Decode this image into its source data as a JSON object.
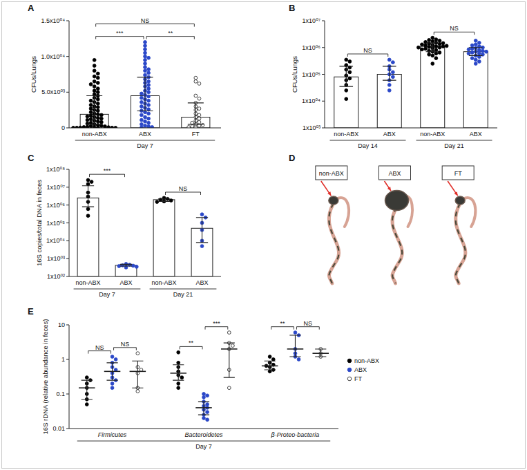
{
  "chart_data": [
    {
      "type": "bar",
      "title": "A",
      "ylabel": "CFUs/Lungs",
      "xlabel": "Day 7",
      "categories": [
        "non-ABX",
        "ABX",
        "FT"
      ],
      "colors": [
        "#000000",
        "#2b48c8",
        "#ffffff"
      ],
      "values": [
        1900,
        4500,
        1500
      ],
      "error_low": [
        500,
        2400,
        500
      ],
      "error_high": [
        4500,
        7100,
        3500
      ],
      "points": [
        [
          9500,
          8700,
          8000,
          7600,
          7200,
          7000,
          6500,
          6300,
          6100,
          5800,
          5500,
          5200,
          5000,
          4700,
          4500,
          4200,
          4000,
          3800,
          3600,
          3400,
          3200,
          3000,
          2900,
          2700,
          2500,
          2400,
          2200,
          2000,
          1900,
          1800,
          1700,
          1600,
          1500,
          1400,
          1300,
          1200,
          1100,
          1000,
          900,
          800,
          700,
          600,
          500,
          400,
          300,
          250,
          200,
          150,
          100,
          80,
          50,
          30,
          20,
          10,
          0,
          0,
          0
        ],
        [
          12000,
          11500,
          11000,
          10500,
          10000,
          9800,
          9500,
          9000,
          8500,
          8200,
          8000,
          7700,
          7400,
          7100,
          6800,
          6500,
          6300,
          6000,
          5800,
          5500,
          5200,
          5000,
          4800,
          4600,
          4400,
          4200,
          4000,
          3800,
          3600,
          3400,
          3200,
          3000,
          2800,
          2600,
          2400,
          2200,
          2000,
          1800,
          1500,
          1300,
          1100,
          900,
          700,
          500,
          300,
          200,
          100,
          50
        ],
        [
          7000,
          6500,
          6200,
          4500,
          4100,
          3500,
          3000,
          2700,
          2500,
          2000,
          1800,
          1500,
          1300,
          1000,
          800,
          700,
          500,
          400,
          300,
          200,
          100,
          50
        ]
      ],
      "ylim": [
        0,
        15000
      ],
      "yticks": [
        0,
        {
          "value": 5000,
          "label": "5.0x10⁰³"
        },
        {
          "value": 10000,
          "label": "1.0x10⁰⁴"
        },
        {
          "value": 15000,
          "label": "1.5x10⁰⁴"
        }
      ],
      "annotations": [
        {
          "text": "NS",
          "from": 0,
          "to": 2
        },
        {
          "text": "***",
          "from": 0,
          "to": 1
        },
        {
          "text": "**",
          "from": 1,
          "to": 2
        }
      ]
    },
    {
      "type": "bar",
      "title": "B",
      "ylabel": "CFUs/Lungs",
      "log": "y",
      "categories": [
        "non-ABX",
        "ABX",
        "non-ABX",
        "ABX"
      ],
      "colors": [
        "#000000",
        "#2b48c8",
        "#000000",
        "#2b48c8"
      ],
      "values": [
        80000,
        100000,
        1100000,
        700000
      ],
      "error_low": [
        35000,
        60000,
        700000,
        500000
      ],
      "error_high": [
        200000,
        200000,
        1500000,
        1000000
      ],
      "points": [
        [
          350000,
          300000,
          220000,
          180000,
          150000,
          120000,
          90000,
          70000,
          60000,
          40000,
          25000,
          12000
        ],
        [
          350000,
          280000,
          200000,
          150000,
          120000,
          100000,
          80000,
          60000,
          40000,
          25000
        ],
        [
          2300000,
          2000000,
          1900000,
          1800000,
          1700000,
          1600000,
          1500000,
          1450000,
          1400000,
          1350000,
          1300000,
          1250000,
          1200000,
          1150000,
          1100000,
          1100000,
          1050000,
          1000000,
          1000000,
          950000,
          900000,
          850000,
          800000,
          750000,
          700000,
          650000,
          600000,
          550000,
          500000,
          400000,
          250000
        ],
        [
          1800000,
          1500000,
          1300000,
          1200000,
          1100000,
          1000000,
          950000,
          900000,
          850000,
          800000,
          750000,
          700000,
          700000,
          650000,
          600000,
          600000,
          550000,
          500000,
          450000,
          400000,
          350000,
          300000,
          250000
        ]
      ],
      "ylim": [
        1000,
        10000000
      ],
      "yticks": [
        {
          "value": 1000,
          "label": "1x10⁰³"
        },
        {
          "value": 10000,
          "label": "1x10⁰⁴"
        },
        {
          "value": 100000,
          "label": "1x10⁰⁵"
        },
        {
          "value": 1000000,
          "label": "1x10⁰⁶"
        },
        {
          "value": 10000000,
          "label": "1x10⁰⁷"
        }
      ],
      "groups": [
        {
          "label": "Day 14",
          "from": 0,
          "to": 1
        },
        {
          "label": "Day 21",
          "from": 2,
          "to": 3
        }
      ],
      "annotations": [
        {
          "text": "NS",
          "from": 0,
          "to": 1
        },
        {
          "text": "NS",
          "from": 2,
          "to": 3
        }
      ]
    },
    {
      "type": "bar",
      "title": "C",
      "ylabel": "16S copies/total DNA in feces",
      "log": "y",
      "categories": [
        "non-ABX",
        "ABX",
        "non-ABX",
        "ABX"
      ],
      "colors": [
        "#000000",
        "#2b48c8",
        "#000000",
        "#2b48c8"
      ],
      "values": [
        2500000,
        420,
        2000000,
        50000
      ],
      "error_low": [
        800000,
        380,
        1600000,
        8000
      ],
      "error_high": [
        12000000,
        480,
        2200000,
        200000
      ],
      "points": [
        [
          25000000,
          20000000,
          15000000,
          5000000,
          3000000,
          1500000,
          600000,
          250000
        ],
        [
          500,
          450,
          420,
          400,
          380,
          350,
          320
        ],
        [
          2500000,
          2200000,
          2000000,
          1800000,
          1600000,
          1500000
        ],
        [
          300000,
          200000,
          100000,
          40000,
          10000,
          5000
        ]
      ],
      "ylim": [
        100,
        100000000
      ],
      "yticks": [
        {
          "value": 100,
          "label": "1x10⁰²"
        },
        {
          "value": 1000,
          "label": "1x10⁰³"
        },
        {
          "value": 10000,
          "label": "1x10⁰⁴"
        },
        {
          "value": 100000,
          "label": "1x10⁰⁵"
        },
        {
          "value": 1000000,
          "label": "1x10⁰⁶"
        },
        {
          "value": 10000000,
          "label": "1x10⁰⁷"
        },
        {
          "value": 100000000,
          "label": "1x10⁰⁸"
        }
      ],
      "groups": [
        {
          "label": "Day 7",
          "from": 0,
          "to": 1
        },
        {
          "label": "Day 21",
          "from": 2,
          "to": 3
        }
      ],
      "annotations": [
        {
          "text": "***",
          "from": 0,
          "to": 1
        },
        {
          "text": "NS",
          "from": 2,
          "to": 3
        }
      ]
    },
    {
      "type": "image",
      "title": "D",
      "categories": [
        "non-ABX",
        "ABX",
        "FT"
      ]
    },
    {
      "type": "scatter",
      "title": "E",
      "ylabel": "16S rDNA (relative abundance in feces)",
      "xlabel": "Day 7",
      "log": "y",
      "categories": [
        "Firmicutes",
        "Bacteroidetes",
        "β-Proteo-bacteria"
      ],
      "series": [
        {
          "name": "non-ABX",
          "color": "#000000",
          "values": [
            0.15,
            0.4,
            0.65
          ],
          "error_low": [
            0.07,
            0.25,
            0.5
          ],
          "error_high": [
            0.25,
            0.7,
            0.9
          ],
          "points": [
            [
              0.3,
              0.25,
              0.2,
              0.15,
              0.1,
              0.07,
              0.05
            ],
            [
              1.6,
              0.8,
              0.6,
              0.45,
              0.35,
              0.3,
              0.2,
              0.15
            ],
            [
              1.2,
              1.0,
              0.8,
              0.7,
              0.65,
              0.6,
              0.5,
              0.45
            ]
          ]
        },
        {
          "name": "ABX",
          "color": "#2b48c8",
          "values": [
            0.45,
            0.04,
            2
          ],
          "error_low": [
            0.25,
            0.025,
            1.2
          ],
          "error_high": [
            0.8,
            0.06,
            5
          ],
          "points": [
            [
              1.2,
              1.0,
              0.8,
              0.6,
              0.5,
              0.4,
              0.3,
              0.25,
              0.2,
              0.15
            ],
            [
              0.1,
              0.09,
              0.08,
              0.06,
              0.05,
              0.045,
              0.04,
              0.035,
              0.03,
              0.025,
              0.02,
              0.018
            ],
            [
              6,
              5,
              2,
              1.5,
              1.2,
              1.0
            ]
          ]
        },
        {
          "name": "FT",
          "color": "#ffffff",
          "values": [
            0.45,
            2,
            1.5
          ],
          "error_low": [
            0.15,
            0.3,
            1.2
          ],
          "error_high": [
            0.9,
            3,
            2
          ],
          "points": [
            [
              1.5,
              0.6,
              0.5,
              0.4,
              0.15,
              0.12
            ],
            [
              6,
              3,
              2.5,
              2,
              0.5,
              0.15
            ],
            [
              2,
              1.5,
              1.2
            ]
          ]
        }
      ],
      "ylim": [
        0.01,
        10
      ],
      "yticks": [
        0.01,
        0.1,
        1,
        10
      ],
      "legend": "right",
      "annotations": [
        {
          "text": "NS",
          "from": 0,
          "to": 1
        },
        {
          "text": "NS",
          "from": 1,
          "to": 2
        },
        {
          "text": "**",
          "from": 3,
          "to": 4
        },
        {
          "text": "***",
          "from": 4,
          "to": 5
        },
        {
          "text": "**",
          "from": 6,
          "to": 7
        },
        {
          "text": "NS",
          "from": 7,
          "to": 8
        }
      ]
    }
  ]
}
